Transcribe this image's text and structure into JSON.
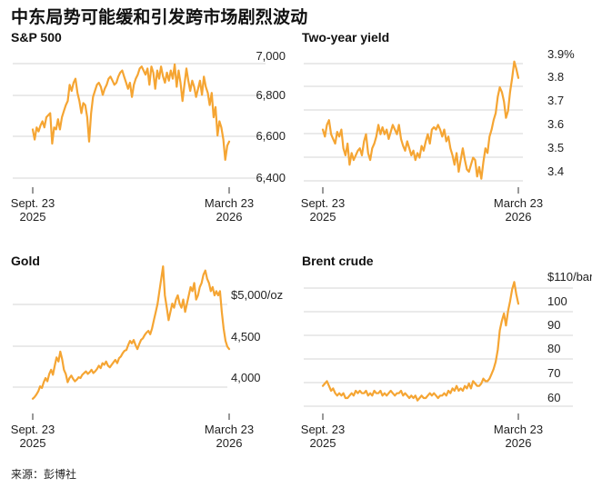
{
  "title": "中东局势可能缓和引发跨市场剧烈波动",
  "source": "来源：彭博社",
  "line_color": "#f5a533",
  "chart_data": [
    {
      "type": "line",
      "title": "S&P 500",
      "x_tick_labels": [
        [
          "Sept. 23",
          "2025"
        ],
        [
          "March 23",
          "2026"
        ]
      ],
      "y_tick_labels": [
        "7,000",
        "6,800",
        "6,600",
        "6,400"
      ],
      "y_ticks": [
        7000,
        6800,
        6600,
        6400
      ],
      "ylim": [
        6350,
        7050
      ],
      "values": [
        6640,
        6590,
        6650,
        6630,
        6660,
        6680,
        6650,
        6700,
        6710,
        6720,
        6570,
        6650,
        6640,
        6690,
        6640,
        6700,
        6730,
        6760,
        6780,
        6860,
        6830,
        6870,
        6890,
        6820,
        6780,
        6720,
        6770,
        6760,
        6700,
        6580,
        6720,
        6800,
        6830,
        6860,
        6870,
        6850,
        6810,
        6840,
        6860,
        6890,
        6900,
        6880,
        6860,
        6870,
        6900,
        6920,
        6930,
        6900,
        6870,
        6840,
        6870,
        6800,
        6860,
        6890,
        6910,
        6940,
        6950,
        6930,
        6910,
        6940,
        6860,
        6950,
        6920,
        6840,
        6930,
        6890,
        6950,
        6900,
        6870,
        6920,
        6880,
        6930,
        6890,
        6960,
        6850,
        6930,
        6870,
        6780,
        6860,
        6940,
        6880,
        6830,
        6880,
        6850,
        6800,
        6840,
        6880,
        6810,
        6900,
        6850,
        6820,
        6760,
        6820,
        6700,
        6750,
        6610,
        6680,
        6650,
        6590,
        6490,
        6560,
        6580
      ]
    },
    {
      "type": "line",
      "title": "Two-year yield",
      "x_tick_labels": [
        [
          "Sept. 23",
          "2025"
        ],
        [
          "March 23",
          "2026"
        ]
      ],
      "y_tick_labels": [
        "3.9%",
        "3.8",
        "3.7",
        "3.6",
        "3.5",
        "3.4"
      ],
      "y_ticks": [
        3.9,
        3.8,
        3.7,
        3.6,
        3.5,
        3.4
      ],
      "ylim": [
        3.35,
        3.92
      ],
      "values": [
        3.58,
        3.55,
        3.6,
        3.62,
        3.56,
        3.54,
        3.52,
        3.57,
        3.55,
        3.58,
        3.5,
        3.47,
        3.52,
        3.43,
        3.48,
        3.45,
        3.47,
        3.49,
        3.5,
        3.47,
        3.53,
        3.56,
        3.48,
        3.45,
        3.5,
        3.52,
        3.55,
        3.6,
        3.56,
        3.59,
        3.56,
        3.58,
        3.54,
        3.57,
        3.6,
        3.58,
        3.56,
        3.6,
        3.54,
        3.51,
        3.49,
        3.53,
        3.5,
        3.47,
        3.49,
        3.45,
        3.48,
        3.46,
        3.51,
        3.49,
        3.53,
        3.56,
        3.52,
        3.58,
        3.59,
        3.58,
        3.6,
        3.58,
        3.55,
        3.58,
        3.53,
        3.55,
        3.5,
        3.47,
        3.43,
        3.48,
        3.4,
        3.45,
        3.5,
        3.45,
        3.41,
        3.4,
        3.43,
        3.46,
        3.45,
        3.38,
        3.42,
        3.37,
        3.44,
        3.5,
        3.48,
        3.55,
        3.58,
        3.62,
        3.65,
        3.72,
        3.76,
        3.74,
        3.7,
        3.63,
        3.66,
        3.74,
        3.8,
        3.87,
        3.84,
        3.8
      ]
    },
    {
      "type": "line",
      "title": "Gold",
      "x_tick_labels": [
        [
          "Sept. 23",
          "2025"
        ],
        [
          "March 23",
          "2026"
        ]
      ],
      "y_tick_labels": [
        "$5,000/oz",
        "4,500",
        "4,000"
      ],
      "y_ticks": [
        5000,
        4500,
        4000
      ],
      "ylim": [
        3700,
        5400
      ],
      "values": [
        3750,
        3770,
        3800,
        3840,
        3900,
        3880,
        3950,
        4000,
        3960,
        4050,
        4100,
        4040,
        4150,
        4250,
        4200,
        4320,
        4230,
        4100,
        4050,
        3950,
        4000,
        4030,
        3990,
        3960,
        3980,
        4010,
        4000,
        4040,
        4060,
        4080,
        4050,
        4070,
        4100,
        4060,
        4080,
        4110,
        4150,
        4120,
        4180,
        4160,
        4200,
        4150,
        4130,
        4160,
        4190,
        4220,
        4180,
        4240,
        4260,
        4300,
        4330,
        4340,
        4400,
        4450,
        4420,
        4460,
        4400,
        4350,
        4410,
        4460,
        4480,
        4520,
        4550,
        4570,
        4530,
        4600,
        4700,
        4800,
        4900,
        5050,
        5200,
        5350,
        5000,
        4850,
        4700,
        4800,
        4900,
        4850,
        4950,
        5000,
        4900,
        4850,
        4950,
        4800,
        4900,
        5000,
        5100,
        5050,
        5150,
        4950,
        5000,
        5100,
        5150,
        5250,
        5300,
        5200,
        5150,
        5050,
        5100,
        5000,
        5050,
        5000,
        5050,
        4800,
        4600,
        4450,
        4380,
        4350
      ]
    },
    {
      "type": "line",
      "title": "Brent crude",
      "x_tick_labels": [
        [
          "Sept. 23",
          "2025"
        ],
        [
          "March 23",
          "2026"
        ]
      ],
      "y_tick_labels": [
        "$110/barrel",
        "100",
        "90",
        "80",
        "70",
        "60"
      ],
      "y_ticks": [
        110,
        100,
        90,
        80,
        70,
        60
      ],
      "ylim": [
        57,
        112
      ],
      "values": [
        65,
        66,
        67,
        65,
        63,
        64,
        62,
        61,
        62,
        61,
        62,
        60,
        60,
        61,
        62,
        61,
        63,
        62,
        63,
        62,
        62,
        63,
        61,
        62,
        61,
        63,
        62,
        62,
        63,
        61,
        62,
        61,
        62,
        63,
        62,
        61,
        62,
        62,
        63,
        61,
        62,
        61,
        60,
        61,
        60,
        61,
        59,
        60,
        61,
        60,
        60,
        61,
        62,
        61,
        62,
        61,
        60,
        61,
        61,
        62,
        61,
        63,
        62,
        64,
        63,
        65,
        63,
        64,
        63,
        65,
        64,
        66,
        64,
        67,
        66,
        65,
        65,
        66,
        68,
        67,
        67,
        68,
        70,
        72,
        75,
        80,
        88,
        92,
        95,
        90,
        96,
        100,
        105,
        108,
        103,
        99
      ]
    }
  ]
}
